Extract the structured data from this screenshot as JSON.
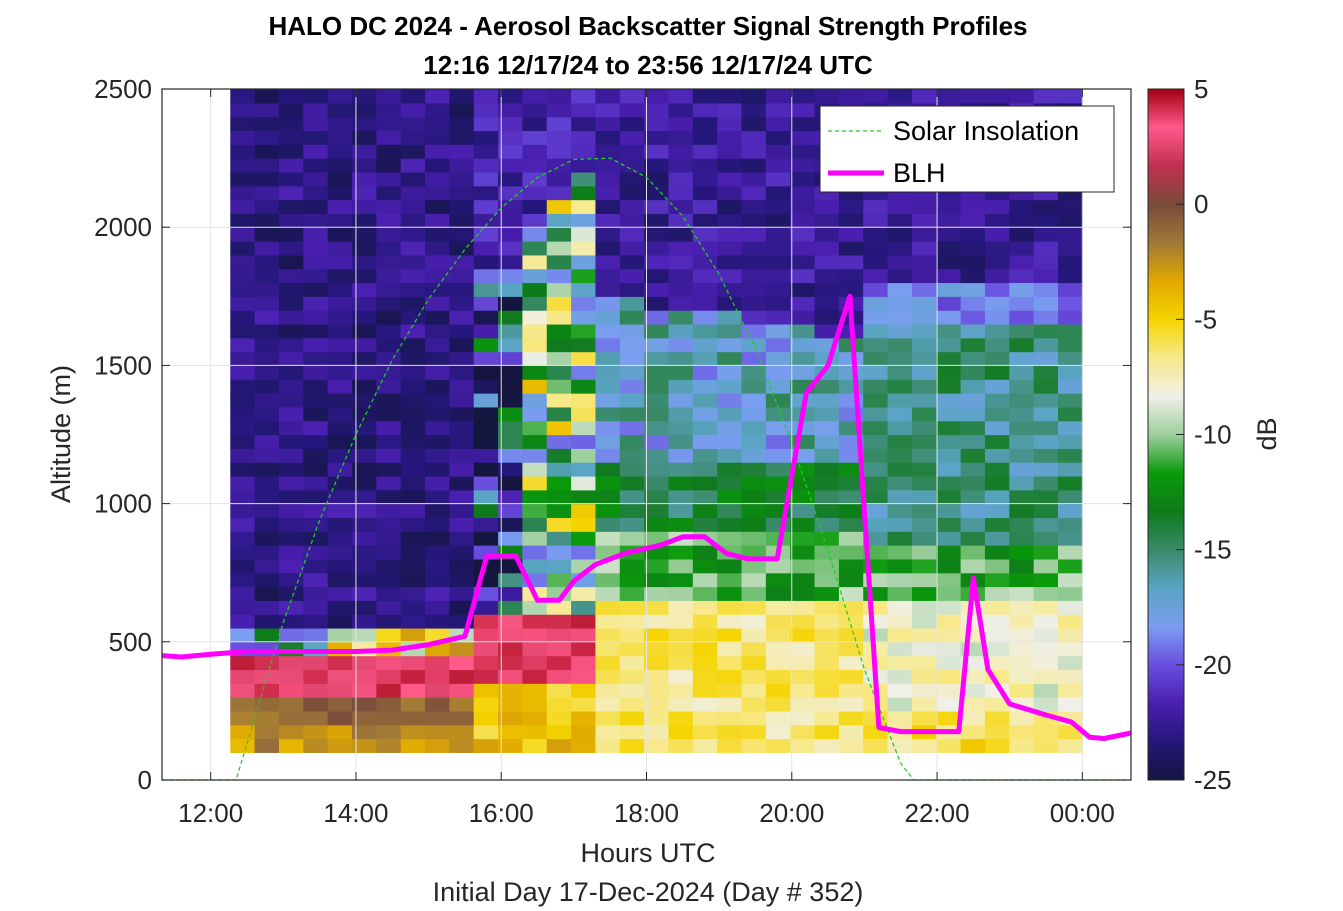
{
  "chart_data": {
    "type": "heatmap",
    "title": "HALO DC 2024 - Aerosol Backscatter Signal Strength Profiles",
    "subtitle": "12:16 12/17/24 to 23:56 12/17/24  UTC",
    "xlabel": "Hours UTC",
    "ylabel": "Altitude (m)",
    "footer": "Initial Day 17-Dec-2024 (Day # 352)",
    "colorbar_label": "dB",
    "xlim": [
      11.33,
      24.67
    ],
    "ylim": [
      0,
      2500
    ],
    "x_ticks": [
      12,
      14,
      16,
      18,
      20,
      22,
      24
    ],
    "x_tick_labels": [
      "12:00",
      "14:00",
      "16:00",
      "18:00",
      "20:00",
      "22:00",
      "00:00"
    ],
    "y_ticks": [
      0,
      500,
      1000,
      1500,
      2000,
      2500
    ],
    "y_tick_labels": [
      "0",
      "500",
      "1000",
      "1500",
      "2000",
      "2500"
    ],
    "clim": [
      -25,
      5
    ],
    "colorbar_ticks": [
      5,
      0,
      -5,
      -10,
      -15,
      -20,
      -25
    ],
    "colorbar_tick_labels": [
      "5",
      "0",
      "-5",
      "-10",
      "-15",
      "-20",
      "-25"
    ],
    "colormap": [
      "#141640",
      "#25177a",
      "#4a1fb0",
      "#6a4fe0",
      "#7a9ef0",
      "#5aa4c4",
      "#3a8a6a",
      "#0e7a1a",
      "#0a9a0a",
      "#9fcf9f",
      "#f0f0e8",
      "#f7e98a",
      "#f5d400",
      "#e0a800",
      "#a07838",
      "#7a4a3a",
      "#c03050",
      "#ff5a8a",
      "#a00010"
    ],
    "grid": true,
    "legend_position": "top-right",
    "heatmap": {
      "x_start": 12.27,
      "x_end": 24.0,
      "y_bottom": 100,
      "y_top": 2500,
      "n_cols": 35,
      "row_height_m": 50
    },
    "series": [
      {
        "name": "Solar Insolation",
        "style": "dashed",
        "color": "#22cc22",
        "x": [
          11.33,
          12.35,
          12.6,
          13.0,
          13.5,
          14.0,
          14.5,
          15.0,
          15.5,
          16.0,
          16.5,
          17.0,
          17.5,
          18.0,
          18.5,
          19.0,
          19.5,
          20.0,
          20.5,
          21.0,
          21.5,
          21.68,
          24.67
        ],
        "y": [
          0,
          0,
          220,
          570,
          940,
          1250,
          1520,
          1740,
          1920,
          2070,
          2180,
          2245,
          2250,
          2180,
          2040,
          1830,
          1560,
          1220,
          830,
          400,
          60,
          0,
          0
        ]
      },
      {
        "name": "BLH",
        "style": "solid",
        "color": "#ff00ff",
        "x": [
          11.33,
          11.6,
          12.0,
          12.5,
          13.0,
          13.5,
          14.0,
          14.5,
          15.0,
          15.5,
          15.8,
          16.2,
          16.5,
          16.8,
          17.0,
          17.3,
          17.7,
          18.2,
          18.5,
          18.8,
          19.1,
          19.4,
          19.8,
          20.2,
          20.5,
          20.8,
          21.2,
          21.5,
          22.0,
          22.3,
          22.5,
          22.7,
          23.0,
          23.5,
          23.85,
          24.1,
          24.3,
          24.67
        ],
        "y": [
          450,
          445,
          455,
          465,
          465,
          465,
          465,
          470,
          490,
          520,
          810,
          810,
          650,
          650,
          720,
          780,
          820,
          850,
          880,
          880,
          820,
          800,
          800,
          1400,
          1500,
          1750,
          190,
          175,
          175,
          175,
          730,
          400,
          275,
          235,
          210,
          155,
          150,
          170
        ]
      }
    ]
  }
}
